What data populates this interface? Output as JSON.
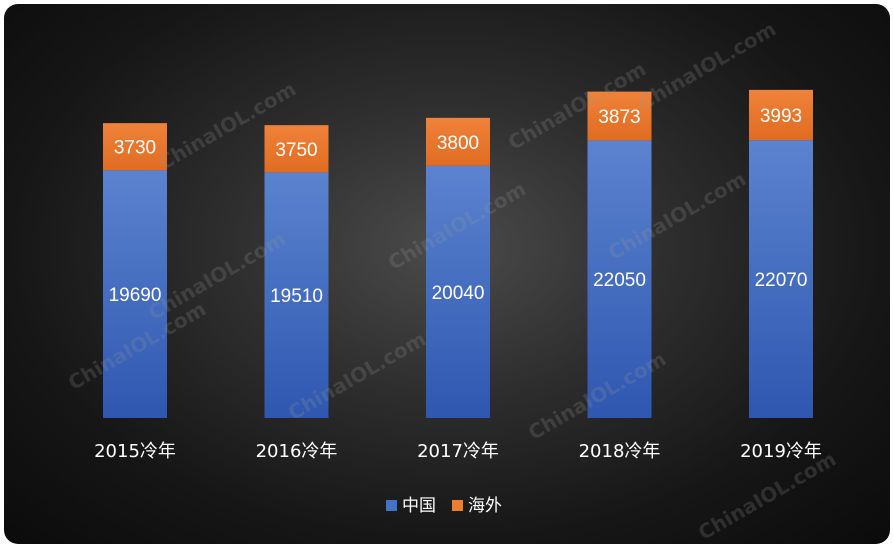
{
  "chart_data": {
    "type": "bar",
    "stacked": true,
    "categories": [
      "2015冷年",
      "2016冷年",
      "2017冷年",
      "2018冷年",
      "2019冷年"
    ],
    "series": [
      {
        "name": "中国",
        "values": [
          19690,
          19510,
          20040,
          22050,
          22070
        ],
        "color": "#4472c4"
      },
      {
        "name": "海外",
        "values": [
          3730,
          3750,
          3800,
          3873,
          3993
        ],
        "color": "#ed7d31"
      }
    ],
    "legend_position": "bottom",
    "grid": false
  },
  "watermark": "ChinaIOL.com"
}
